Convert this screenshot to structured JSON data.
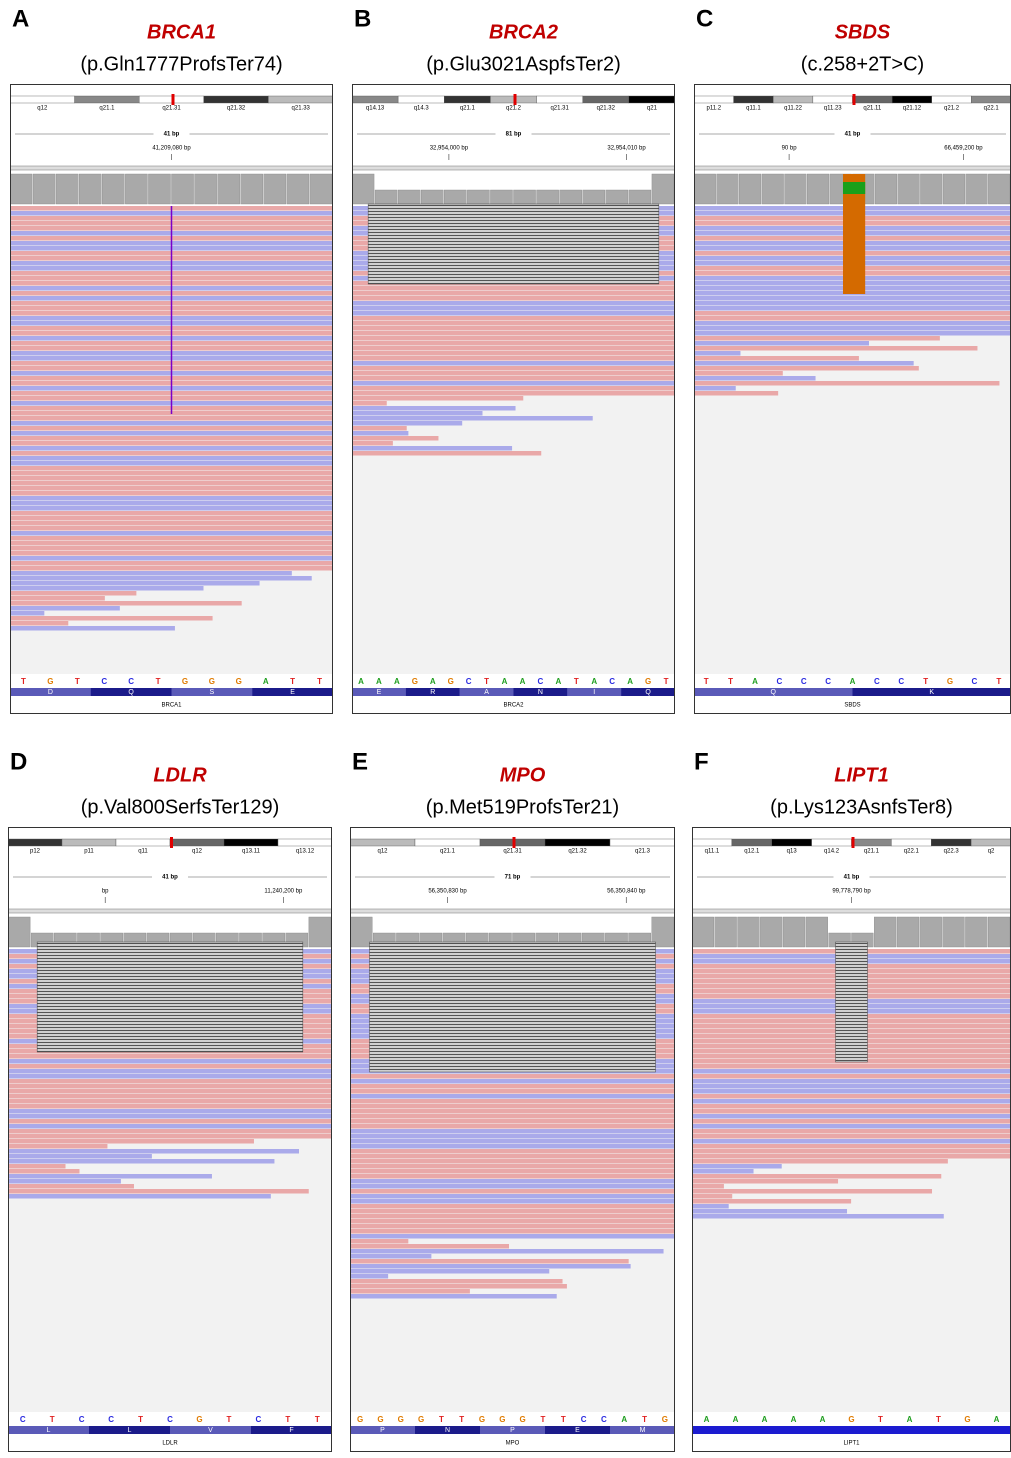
{
  "base_colors": {
    "A": "#1f9e1f",
    "C": "#2a2ae0",
    "G": "#e07b00",
    "T": "#e02020"
  },
  "panels": [
    {
      "label": "A",
      "gene": "BRCA1",
      "variant": "(p.Gln1777ProfsTer74)",
      "cytobands": [
        "q12",
        "q21.1",
        "q21.31",
        "q21.32",
        "q21.33"
      ],
      "width": "41 bp",
      "coords": [
        "41,209,080 bp"
      ],
      "bases": [
        "T",
        "G",
        "T",
        "C",
        "C",
        "T",
        "G",
        "G",
        "G",
        "A",
        "T",
        "T"
      ],
      "aminoacids": [
        "D",
        "Q",
        "S",
        "E"
      ],
      "track": "BRCA1"
    },
    {
      "label": "B",
      "gene": "BRCA2",
      "variant": "(p.Glu3021AspfsTer2)",
      "cytobands": [
        "q14.13",
        "q14.3",
        "q21.1",
        "q21.2",
        "q21.31",
        "q21.32",
        "q21"
      ],
      "width": "81 bp",
      "coords": [
        "32,954,000 bp",
        "32,954,010 bp"
      ],
      "bases": [
        "A",
        "A",
        "A",
        "G",
        "A",
        "G",
        "C",
        "T",
        "A",
        "A",
        "C",
        "A",
        "T",
        "A",
        "C",
        "A",
        "G",
        "T"
      ],
      "aminoacids": [
        "E",
        "R",
        "A",
        "N",
        "I",
        "Q"
      ],
      "track": "BRCA2"
    },
    {
      "label": "C",
      "gene": "SBDS",
      "variant": "(c.258+2T>C)",
      "cytobands": [
        "p11.2",
        "q11.1",
        "q11.22",
        "q11.23",
        "q21.11",
        "q21.12",
        "q21.2",
        "q22.1"
      ],
      "width": "41 bp",
      "coords": [
        "90 bp",
        "66,459,200 bp"
      ],
      "bases": [
        "T",
        "T",
        "A",
        "C",
        "C",
        "C",
        "A",
        "C",
        "C",
        "T",
        "G",
        "C",
        "T"
      ],
      "aminoacids": [
        "Q",
        "K"
      ],
      "track": "SBDS"
    },
    {
      "label": "D",
      "gene": "LDLR",
      "variant": "(p.Val800SerfsTer129)",
      "cytobands": [
        "p12",
        "p11",
        "q11",
        "q12",
        "q13.11",
        "q13.12"
      ],
      "width": "41 bp",
      "coords": [
        "bp",
        "11,240,200 bp"
      ],
      "bases": [
        "C",
        "T",
        "C",
        "C",
        "T",
        "C",
        "G",
        "T",
        "C",
        "T",
        "T"
      ],
      "aminoacids": [
        "L",
        "L",
        "V",
        "F"
      ],
      "track": "LDLR"
    },
    {
      "label": "E",
      "gene": "MPO",
      "variant": "(p.Met519ProfsTer21)",
      "cytobands": [
        "q12",
        "q21.1",
        "q21.31",
        "q21.32",
        "q21.3"
      ],
      "width": "71 bp",
      "coords": [
        "56,350,830 bp",
        "56,350,840 bp"
      ],
      "bases": [
        "G",
        "G",
        "G",
        "G",
        "T",
        "T",
        "G",
        "G",
        "G",
        "T",
        "T",
        "C",
        "C",
        "A",
        "T",
        "G"
      ],
      "aminoacids": [
        "P",
        "N",
        "P",
        "E",
        "M"
      ],
      "track": "MPO"
    },
    {
      "label": "F",
      "gene": "LIPT1",
      "variant": "(p.Lys123AsnfsTer8)",
      "cytobands": [
        "q11.1",
        "q12.1",
        "q13",
        "q14.2",
        "q21.1",
        "q22.1",
        "q22.3",
        "q2"
      ],
      "width": "41 bp",
      "coords": [
        "99,778,790 bp"
      ],
      "bases": [
        "A",
        "A",
        "A",
        "A",
        "A",
        "G",
        "T",
        "A",
        "T",
        "G",
        "A"
      ],
      "aminoacids": [],
      "track": "LIPT1"
    }
  ]
}
